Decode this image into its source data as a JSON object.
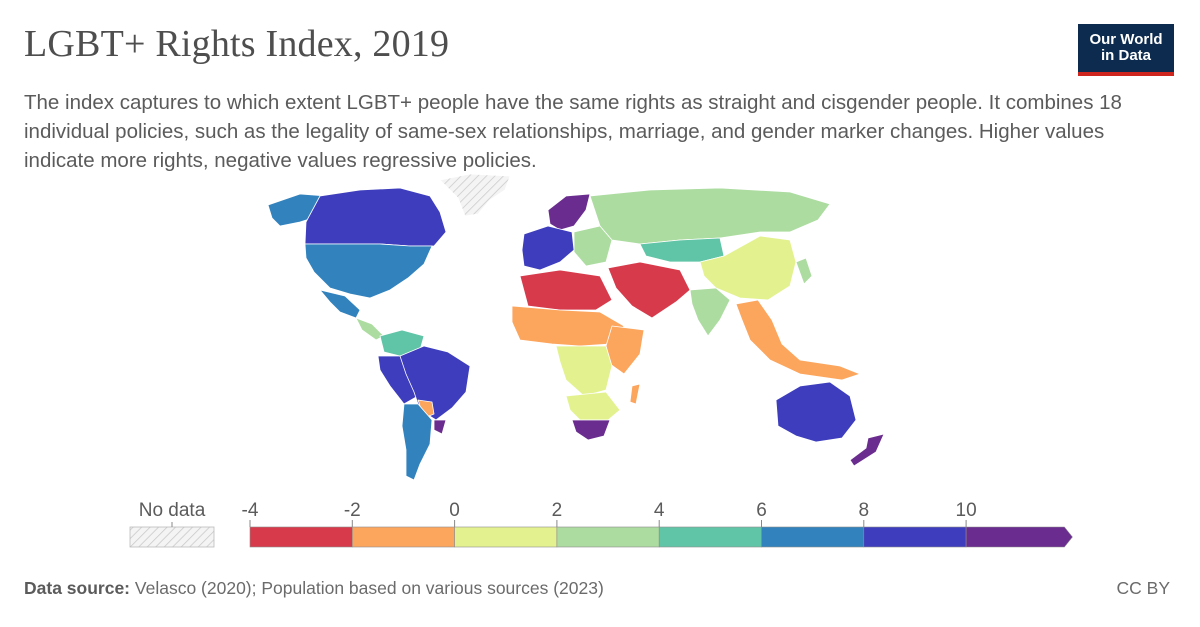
{
  "header": {
    "title": "LGBT+ Rights Index, 2019",
    "subtitle": "The index captures to which extent LGBT+ people have the same rights as straight and cisgender people. It combines 18 individual policies, such as the legality of same-sex relationships, marriage, and gender marker changes. Higher values indicate more rights, negative values regressive policies.",
    "logo_line1": "Our World",
    "logo_line2": "in Data"
  },
  "legend": {
    "no_data_label": "No data",
    "ticks": [
      "-4",
      "-2",
      "0",
      "2",
      "4",
      "6",
      "8",
      "10"
    ],
    "bins": [
      {
        "from": -4,
        "to": -2,
        "color": "#d73a4b"
      },
      {
        "from": -2,
        "to": 0,
        "color": "#fca55d"
      },
      {
        "from": 0,
        "to": 2,
        "color": "#e3f28f"
      },
      {
        "from": 2,
        "to": 4,
        "color": "#acdca0"
      },
      {
        "from": 4,
        "to": 6,
        "color": "#60c4a6"
      },
      {
        "from": 6,
        "to": 8,
        "color": "#3182bd"
      },
      {
        "from": 8,
        "to": 10,
        "color": "#3d3dbd"
      },
      {
        "from": 10,
        "to": 12,
        "color": "#6a2d8f"
      }
    ]
  },
  "map": {
    "regions": [
      {
        "name": "Canada",
        "color": "#3d3dbd"
      },
      {
        "name": "Alaska",
        "color": "#3182bd"
      },
      {
        "name": "United States",
        "color": "#3182bd"
      },
      {
        "name": "Mexico",
        "color": "#3182bd"
      },
      {
        "name": "Central America",
        "color": "#acdca0"
      },
      {
        "name": "Greenland",
        "color": "#no-data"
      },
      {
        "name": "Brazil",
        "color": "#3d3dbd"
      },
      {
        "name": "Argentina",
        "color": "#3182bd"
      },
      {
        "name": "Colombia/Venezuela",
        "color": "#60c4a6"
      },
      {
        "name": "Peru/Bolivia",
        "color": "#3d3dbd"
      },
      {
        "name": "Paraguay",
        "color": "#fca55d"
      },
      {
        "name": "Uruguay",
        "color": "#6a2d8f"
      },
      {
        "name": "Nordics",
        "color": "#6a2d8f"
      },
      {
        "name": "Western Europe",
        "color": "#3d3dbd"
      },
      {
        "name": "Eastern Europe",
        "color": "#acdca0"
      },
      {
        "name": "Russia",
        "color": "#acdca0"
      },
      {
        "name": "Kazakhstan",
        "color": "#60c4a6"
      },
      {
        "name": "China",
        "color": "#e3f28f"
      },
      {
        "name": "Middle East",
        "color": "#d73a4b"
      },
      {
        "name": "North Africa",
        "color": "#d73a4b"
      },
      {
        "name": "Sahel",
        "color": "#fca55d"
      },
      {
        "name": "Central Africa",
        "color": "#e3f28f"
      },
      {
        "name": "East Africa",
        "color": "#fca55d"
      },
      {
        "name": "Southern Africa",
        "color": "#e3f28f"
      },
      {
        "name": "South Africa",
        "color": "#6a2d8f"
      },
      {
        "name": "India",
        "color": "#acdca0"
      },
      {
        "name": "Southeast Asia",
        "color": "#fca55d"
      },
      {
        "name": "Australia",
        "color": "#3d3dbd"
      },
      {
        "name": "New Zealand",
        "color": "#6a2d8f"
      }
    ]
  },
  "footer": {
    "source_label": "Data source:",
    "source_text": "Velasco (2020); Population based on various sources (2023)",
    "license": "CC BY"
  }
}
